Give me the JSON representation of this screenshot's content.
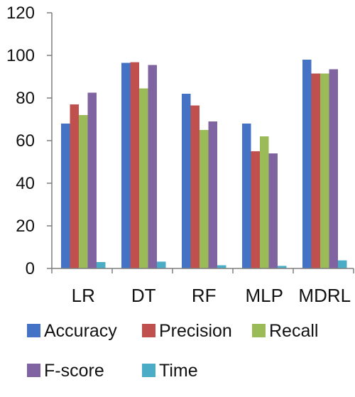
{
  "chart_data": {
    "type": "bar",
    "categories": [
      "LR",
      "DT",
      "RF",
      "MLP",
      "MDRL"
    ],
    "series": [
      {
        "name": "Accuracy",
        "color": "#4472C4",
        "values": [
          68,
          96.5,
          82,
          68,
          98
        ]
      },
      {
        "name": "Precision",
        "color": "#C0504D",
        "values": [
          77,
          96.8,
          76.5,
          55,
          91.5
        ]
      },
      {
        "name": "Recall",
        "color": "#9BBB59",
        "values": [
          72,
          84.5,
          65,
          62,
          91.5
        ]
      },
      {
        "name": "F-score",
        "color": "#8064A2",
        "values": [
          82.5,
          95.5,
          69,
          54,
          93.5
        ]
      },
      {
        "name": "Time",
        "color": "#4BACC6",
        "values": [
          3,
          3.2,
          1.5,
          1.2,
          3.8
        ]
      }
    ],
    "ylim": [
      0,
      120
    ],
    "yticks": [
      0,
      20,
      40,
      60,
      80,
      100,
      120
    ],
    "grid": false,
    "legend_position": "bottom"
  }
}
